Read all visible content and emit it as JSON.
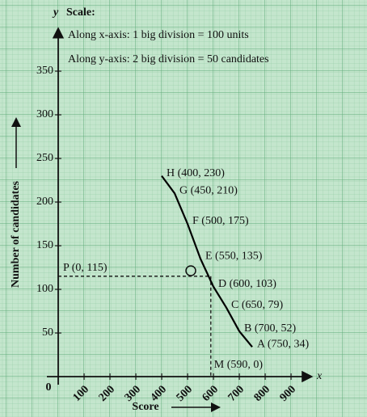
{
  "chart_data": {
    "type": "line",
    "scale_title": "Scale:",
    "scale_lines": [
      "Along x-axis: 1 big division = 100 units",
      "Along y-axis: 2 big division = 50 candidates"
    ],
    "x_label": "Score",
    "y_label": "Number of candidates",
    "x_axis_name": "x",
    "y_axis_name": "y",
    "origin_label": "0",
    "x": [
      400,
      450,
      500,
      550,
      600,
      650,
      700,
      750
    ],
    "series": [
      {
        "name": "ogive",
        "color": "#000000",
        "values": [
          230,
          210,
          175,
          135,
          103,
          79,
          52,
          34
        ],
        "value_labels": [
          "H (400, 230)",
          "G (450, 210)",
          "F (500, 175)",
          "E (550, 135)",
          "D (600, 103)",
          "C (650, 79)",
          "B (700, 52)",
          "A (750, 34)"
        ]
      }
    ],
    "annotations": [
      {
        "label": "P (0, 115)",
        "x": 0,
        "y": 115
      },
      {
        "label": "M (590, 0)",
        "x": 590,
        "y": 0
      }
    ],
    "xlim": [
      0,
      950
    ],
    "ylim": [
      0,
      390
    ],
    "xticks": [
      100,
      200,
      300,
      400,
      500,
      600,
      700,
      800,
      900
    ],
    "yticks": [
      50,
      100,
      150,
      200,
      250,
      300,
      350
    ]
  }
}
